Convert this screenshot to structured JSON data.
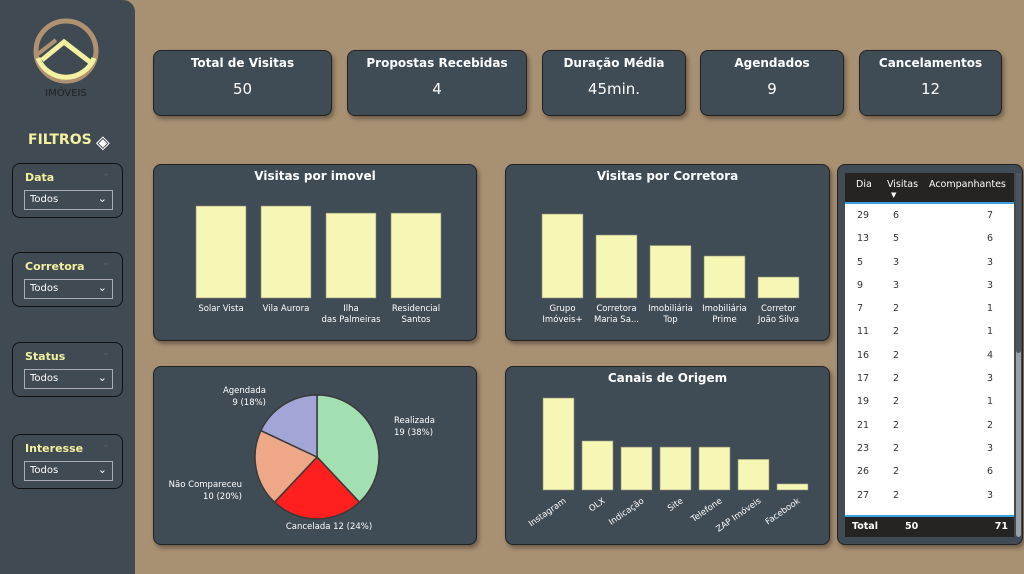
{
  "sidebar": {
    "logo_text": "IMÓVEIS",
    "filters_title": "FILTROS",
    "filters": [
      {
        "label": "Data",
        "value": "Todos"
      },
      {
        "label": "Corretora",
        "value": "Todos"
      },
      {
        "label": "Status",
        "value": "Todos"
      },
      {
        "label": "Interesse",
        "value": "Todos"
      }
    ]
  },
  "kpis": [
    {
      "title": "Total de Visitas",
      "value": "50"
    },
    {
      "title": "Propostas Recebidas",
      "value": "4"
    },
    {
      "title": "Duração Média",
      "value": "45min."
    },
    {
      "title": "Agendados",
      "value": "9"
    },
    {
      "title": "Cancelamentos",
      "value": "12"
    }
  ],
  "chart_data": [
    {
      "type": "bar",
      "title": "Visitas por imovel",
      "categories": [
        "Solar Vista",
        "Vila Aurora",
        "Ilha das Palmeiras",
        "Residencial Santos"
      ],
      "values": [
        13,
        13,
        12,
        12
      ],
      "color": "#f7f7b5"
    },
    {
      "type": "bar",
      "title": "Visitas por Corretora",
      "categories": [
        "Grupo Imóveis+",
        "Corretora Maria Sa...",
        "Imobiliária Top",
        "Imobiliária Prime",
        "Corretor João Silva"
      ],
      "values": [
        16,
        12,
        10,
        8,
        4
      ],
      "color": "#f7f7b5"
    },
    {
      "type": "pie",
      "title": "",
      "slices": [
        {
          "label": "Realizada",
          "value": 19,
          "pct": "38%",
          "color": "#a2e0b2"
        },
        {
          "label": "Cancelada",
          "value": 12,
          "pct": "24%",
          "color": "#ff1f1f"
        },
        {
          "label": "Não Compareceu",
          "value": 10,
          "pct": "20%",
          "color": "#eea887"
        },
        {
          "label": "Agendada",
          "value": 9,
          "pct": "18%",
          "color": "#a1a6d6"
        }
      ]
    },
    {
      "type": "bar",
      "title": "Canais de Origem",
      "categories": [
        "Instagram",
        "OLX",
        "Indicação",
        "Site",
        "Telefone",
        "ZAP Imóveis",
        "Facebook"
      ],
      "values": [
        15,
        8,
        7,
        7,
        7,
        5,
        1
      ],
      "color": "#f7f7b5"
    }
  ],
  "table": {
    "headers": [
      "Dia",
      "Visitas",
      "Acompanhantes"
    ],
    "rows": [
      [
        "29",
        "6",
        "7"
      ],
      [
        "13",
        "5",
        "6"
      ],
      [
        "5",
        "3",
        "3"
      ],
      [
        "9",
        "3",
        "3"
      ],
      [
        "7",
        "2",
        "1"
      ],
      [
        "11",
        "2",
        "1"
      ],
      [
        "16",
        "2",
        "4"
      ],
      [
        "17",
        "2",
        "3"
      ],
      [
        "19",
        "2",
        "1"
      ],
      [
        "21",
        "2",
        "2"
      ],
      [
        "23",
        "2",
        "3"
      ],
      [
        "26",
        "2",
        "6"
      ],
      [
        "27",
        "2",
        "3"
      ]
    ],
    "total": {
      "label": "Total",
      "visitas": "50",
      "acompanhantes": "71"
    }
  }
}
